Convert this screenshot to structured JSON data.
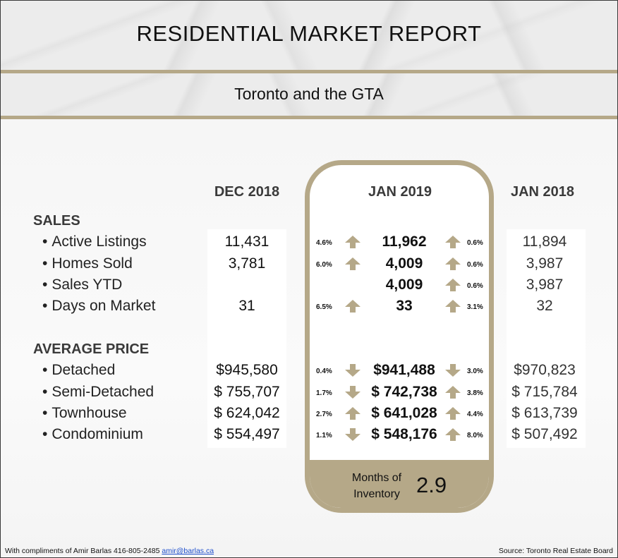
{
  "title": "RESIDENTIAL MARKET REPORT",
  "subtitle": "Toronto and the GTA",
  "columns": {
    "dec2018": "DEC 2018",
    "jan2019": "JAN 2019",
    "jan2018": "JAN 2018"
  },
  "sections": {
    "sales": "SALES",
    "average_price": "AVERAGE PRICE"
  },
  "bullet": "•",
  "rows": [
    {
      "label": "Active Listings",
      "dec2018": "11,431",
      "left_pct": "4.6%",
      "left_dir": "up",
      "jan2019": "11,962",
      "right_dir": "up",
      "right_pct": "0.6%",
      "jan2018": "11,894"
    },
    {
      "label": "Homes Sold",
      "dec2018": "3,781",
      "left_pct": "6.0%",
      "left_dir": "up",
      "jan2019": "4,009",
      "right_dir": "up",
      "right_pct": "0.6%",
      "jan2018": "3,987"
    },
    {
      "label": "Sales YTD",
      "dec2018": "",
      "left_pct": "",
      "left_dir": "",
      "jan2019": "4,009",
      "right_dir": "up",
      "right_pct": "0.6%",
      "jan2018": "3,987"
    },
    {
      "label": "Days on Market",
      "dec2018": "31",
      "left_pct": "6.5%",
      "left_dir": "up",
      "jan2019": "33",
      "right_dir": "up",
      "right_pct": "3.1%",
      "jan2018": "32"
    },
    {
      "label": "Detached",
      "dec2018": "$945,580",
      "left_pct": "0.4%",
      "left_dir": "down",
      "jan2019": "$941,488",
      "right_dir": "down",
      "right_pct": "3.0%",
      "jan2018": "$970,823"
    },
    {
      "label": "Semi-Detached",
      "dec2018": "$ 755,707",
      "left_pct": "1.7%",
      "left_dir": "down",
      "jan2019": "$ 742,738",
      "right_dir": "up",
      "right_pct": "3.8%",
      "jan2018": "$ 715,784"
    },
    {
      "label": "Townhouse",
      "dec2018": "$ 624,042",
      "left_pct": "2.7%",
      "left_dir": "up",
      "jan2019": "$ 641,028",
      "right_dir": "up",
      "right_pct": "4.4%",
      "jan2018": "$ 613,739"
    },
    {
      "label": "Condominium",
      "dec2018": "$ 554,497",
      "left_pct": "1.1%",
      "left_dir": "down",
      "jan2019": "$ 548,176",
      "right_dir": "up",
      "right_pct": "8.0%",
      "jan2018": "$ 507,492"
    }
  ],
  "months_of_inventory": {
    "label": "Months of Inventory",
    "value": "2.9"
  },
  "footer": {
    "compliments": "With compliments of Amir Barlas 416-805-2485",
    "email": "amir@barlas.ca",
    "source": "Source: Toronto Real Estate Board"
  },
  "colors": {
    "gold": "#b5a888",
    "text": "#111111",
    "heading": "#3a3a3a"
  }
}
